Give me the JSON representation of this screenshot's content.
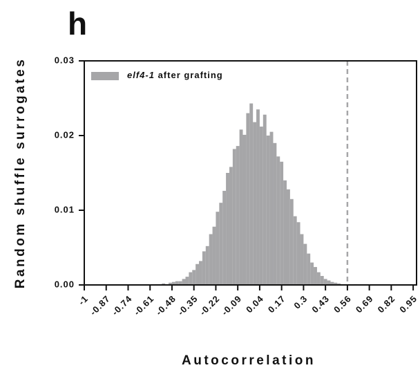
{
  "chart_data": {
    "type": "histogram",
    "panel_label": "h",
    "x_label": "Autocorrelation",
    "y_label": "Random shuffle surrogates",
    "bins": [
      -0.6,
      -0.58,
      -0.56,
      -0.54,
      -0.52,
      -0.5,
      -0.48,
      -0.46,
      -0.44,
      -0.42,
      -0.4,
      -0.38,
      -0.36,
      -0.34,
      -0.32,
      -0.3,
      -0.28,
      -0.26,
      -0.24,
      -0.22,
      -0.2,
      -0.18,
      -0.16,
      -0.14,
      -0.12,
      -0.1,
      -0.08,
      -0.06,
      -0.04,
      -0.02,
      0,
      0.02,
      0.04,
      0.06,
      0.08,
      0.1,
      0.12,
      0.14,
      0.16,
      0.18,
      0.2,
      0.22,
      0.24,
      0.26,
      0.28,
      0.3,
      0.32,
      0.34,
      0.36,
      0.38,
      0.4,
      0.42,
      0.44,
      0.46,
      0.48,
      0.5,
      0.52,
      0.54,
      0.56,
      0.58,
      0.6,
      0.62,
      0.64
    ],
    "series": [
      {
        "name": "elf4-1 after grafting",
        "color": "#a6a6a8",
        "values": [
          0.0,
          0.0001,
          0.0001,
          0.0002,
          0.0001,
          0.0003,
          0.0004,
          0.0005,
          0.0005,
          0.0008,
          0.0011,
          0.0017,
          0.002,
          0.0028,
          0.0032,
          0.0045,
          0.0052,
          0.0068,
          0.0078,
          0.0098,
          0.011,
          0.0126,
          0.015,
          0.0158,
          0.0182,
          0.0186,
          0.0208,
          0.0201,
          0.023,
          0.0243,
          0.0218,
          0.0235,
          0.0212,
          0.0228,
          0.02,
          0.0205,
          0.019,
          0.0172,
          0.0165,
          0.014,
          0.0128,
          0.0115,
          0.0092,
          0.0084,
          0.0068,
          0.0055,
          0.0042,
          0.003,
          0.0024,
          0.0017,
          0.0012,
          0.0008,
          0.0006,
          0.0004,
          0.0003,
          0.0002,
          0.0001,
          0.0001,
          0.0001,
          0.0,
          0.0001,
          0.0
        ]
      }
    ],
    "reference_line": 0.56,
    "reference_color": "#a6a6a8",
    "xlim": [
      -1,
      0.97
    ],
    "xticks": [
      -1,
      -0.87,
      -0.74,
      -0.61,
      -0.48,
      -0.35,
      -0.22,
      -0.09,
      0.04,
      0.17,
      0.3,
      0.43,
      0.56,
      0.69,
      0.82,
      0.95
    ],
    "ylim": [
      0,
      0.03
    ],
    "yticks": [
      {
        "value": 0,
        "label": "0.00"
      },
      0.01,
      0.02,
      0.03
    ],
    "legend": "upper left"
  }
}
